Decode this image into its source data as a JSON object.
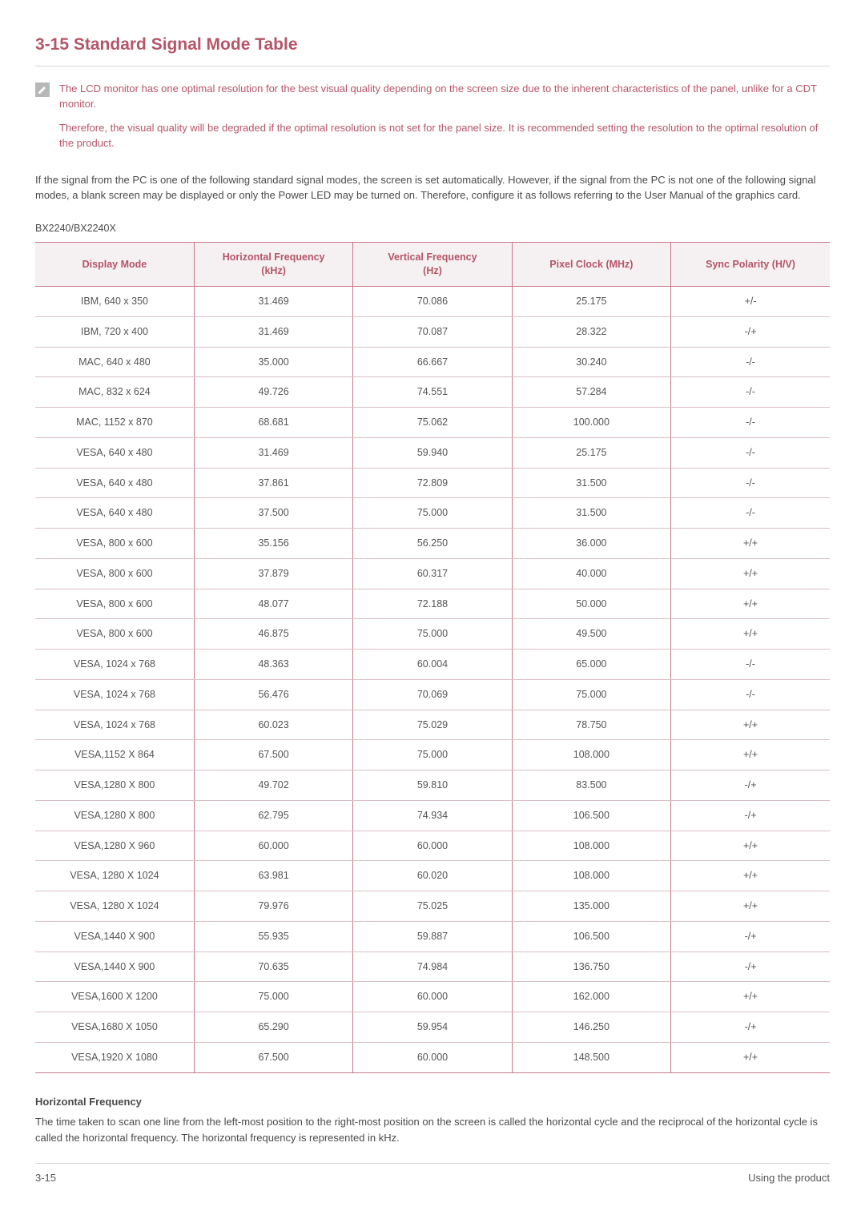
{
  "colors": {
    "accent": "#b55568",
    "header_bg": "#f5f0f1",
    "table_border": "#c6788a",
    "row_border": "#d9bfc6",
    "body_text": "#4a4a4a",
    "icon_bg": "#b8b8b8",
    "page_bg": "#ffffff",
    "hr": "#d4d4d4"
  },
  "heading": "3-15  Standard Signal Mode Table",
  "note": {
    "p1": "The LCD monitor has one optimal resolution for the best visual quality depending on the screen size due to the inherent characteristics of the panel, unlike for a CDT monitor.",
    "p2": "Therefore, the visual quality will be degraded if the optimal resolution is not set for the panel size. It is recommended setting the resolution to the optimal resolution of the product."
  },
  "body_paragraph": "If the signal from the PC is one of the following standard signal modes, the screen is set automatically. However, if the signal from the PC is not one of the following signal modes, a blank screen may be displayed or only the Power LED may be turned on. Therefore, configure it as follows referring to the User Manual of the graphics card.",
  "model": "BX2240/BX2240X",
  "table": {
    "columns": [
      "Display Mode",
      "Horizontal Frequency (kHz)",
      "Vertical Frequency (Hz)",
      "Pixel Clock (MHz)",
      "Sync Polarity (H/V)"
    ],
    "column_widths_pct": [
      20,
      20,
      20,
      20,
      20
    ],
    "rows": [
      [
        "IBM, 640 x 350",
        "31.469",
        "70.086",
        "25.175",
        "+/-"
      ],
      [
        "IBM, 720 x 400",
        "31.469",
        "70.087",
        "28.322",
        "-/+"
      ],
      [
        "MAC, 640 x 480",
        "35.000",
        "66.667",
        "30.240",
        "-/-"
      ],
      [
        "MAC, 832 x 624",
        "49.726",
        "74.551",
        "57.284",
        "-/-"
      ],
      [
        "MAC, 1152 x 870",
        "68.681",
        "75.062",
        "100.000",
        "-/-"
      ],
      [
        "VESA, 640 x 480",
        "31.469",
        "59.940",
        "25.175",
        "-/-"
      ],
      [
        "VESA, 640 x 480",
        "37.861",
        "72.809",
        "31.500",
        "-/-"
      ],
      [
        "VESA, 640 x 480",
        "37.500",
        "75.000",
        "31.500",
        "-/-"
      ],
      [
        "VESA, 800 x 600",
        "35.156",
        "56.250",
        "36.000",
        "+/+"
      ],
      [
        "VESA, 800 x 600",
        "37.879",
        "60.317",
        "40.000",
        "+/+"
      ],
      [
        "VESA, 800 x 600",
        "48.077",
        "72.188",
        "50.000",
        "+/+"
      ],
      [
        "VESA, 800 x 600",
        "46.875",
        "75.000",
        "49.500",
        "+/+"
      ],
      [
        "VESA, 1024 x 768",
        "48.363",
        "60.004",
        "65.000",
        "-/-"
      ],
      [
        "VESA, 1024 x 768",
        "56.476",
        "70.069",
        "75.000",
        "-/-"
      ],
      [
        "VESA, 1024 x 768",
        "60.023",
        "75.029",
        "78.750",
        "+/+"
      ],
      [
        "VESA,1152 X 864",
        "67.500",
        "75.000",
        "108.000",
        "+/+"
      ],
      [
        "VESA,1280 X 800",
        "49.702",
        "59.810",
        "83.500",
        "-/+"
      ],
      [
        "VESA,1280 X 800",
        "62.795",
        "74.934",
        "106.500",
        "-/+"
      ],
      [
        "VESA,1280 X 960",
        "60.000",
        "60.000",
        "108.000",
        "+/+"
      ],
      [
        "VESA, 1280 X 1024",
        "63.981",
        "60.020",
        "108.000",
        "+/+"
      ],
      [
        "VESA, 1280 X 1024",
        "79.976",
        "75.025",
        "135.000",
        "+/+"
      ],
      [
        "VESA,1440 X 900",
        "55.935",
        "59.887",
        "106.500",
        "-/+"
      ],
      [
        "VESA,1440 X 900",
        "70.635",
        "74.984",
        "136.750",
        "-/+"
      ],
      [
        "VESA,1600 X 1200",
        "75.000",
        "60.000",
        "162.000",
        "+/+"
      ],
      [
        "VESA,1680 X 1050",
        "65.290",
        "59.954",
        "146.250",
        "-/+"
      ],
      [
        "VESA,1920 X 1080",
        "67.500",
        "60.000",
        "148.500",
        "+/+"
      ]
    ]
  },
  "definition": {
    "heading": "Horizontal Frequency",
    "text": "The time taken to scan one line from the left-most position to the right-most position on the screen is called the horizontal cycle and the reciprocal of the horizontal cycle is called the horizontal frequency. The horizontal frequency is represented in kHz."
  },
  "footer": {
    "left": "3-15",
    "right": "Using the product"
  }
}
